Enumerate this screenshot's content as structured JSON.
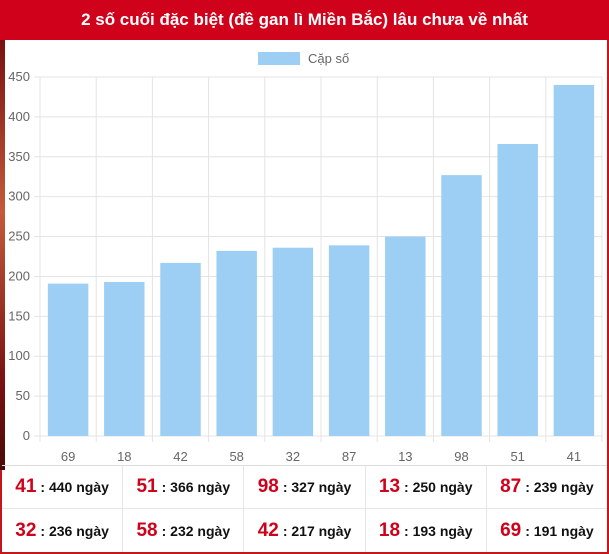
{
  "header": {
    "title": "2 số cuối đặc biệt (đề gan lì Miền Bắc) lâu chưa về nhất"
  },
  "colors": {
    "header_bg": "#d0021b",
    "bar_fill": "#9ccff3",
    "number_red": "#d0021b"
  },
  "chart_data": {
    "type": "bar",
    "categories": [
      "69",
      "18",
      "42",
      "58",
      "32",
      "87",
      "13",
      "98",
      "51",
      "41"
    ],
    "series": [
      {
        "name": "Cặp số",
        "values": [
          191,
          193,
          217,
          232,
          236,
          239,
          250,
          327,
          366,
          440
        ]
      }
    ],
    "ylim": [
      0,
      450
    ],
    "yticks": [
      "0",
      "50",
      "100",
      "150",
      "200",
      "250",
      "300",
      "350",
      "400",
      "450"
    ],
    "grid": true,
    "legend_position": "top"
  },
  "stats": {
    "rows": [
      [
        {
          "num": "41",
          "days": ": 440 ngày"
        },
        {
          "num": "51",
          "days": ": 366 ngày"
        },
        {
          "num": "98",
          "days": ": 327 ngày"
        },
        {
          "num": "13",
          "days": ": 250 ngày"
        },
        {
          "num": "87",
          "days": ": 239 ngày"
        }
      ],
      [
        {
          "num": "32",
          "days": ": 236 ngày"
        },
        {
          "num": "58",
          "days": ": 232 ngày"
        },
        {
          "num": "42",
          "days": ": 217 ngày"
        },
        {
          "num": "18",
          "days": ": 193 ngày"
        },
        {
          "num": "69",
          "days": ": 191 ngày"
        }
      ]
    ]
  }
}
